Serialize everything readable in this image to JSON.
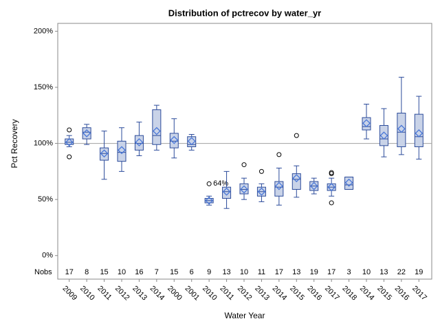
{
  "chart_data": {
    "type": "box",
    "title": "Distribution of pctrecov by water_yr",
    "x_label": "Water Year",
    "y_label": "Pct Recovery",
    "nobs_label": "Nobs",
    "categories": [
      "2009",
      "2010",
      "2011",
      "2012",
      "2013",
      "2014",
      "2000",
      "2001",
      "2010",
      "2011",
      "2012",
      "2013",
      "2014",
      "2015",
      "2016",
      "2017",
      "2018",
      "2014",
      "2015",
      "2016",
      "2017"
    ],
    "nobs": [
      17,
      8,
      15,
      10,
      16,
      7,
      15,
      6,
      9,
      13,
      10,
      11,
      17,
      13,
      19,
      17,
      3,
      10,
      13,
      22,
      19
    ],
    "min": [
      97,
      99,
      68,
      75,
      89,
      94,
      87,
      94,
      45,
      42,
      50,
      48,
      45,
      52,
      55,
      53,
      59,
      104,
      88,
      90,
      86
    ],
    "q1": [
      99,
      104,
      85,
      84,
      94,
      99,
      96,
      97,
      47,
      51,
      55,
      53,
      53,
      59,
      58,
      58,
      59,
      112,
      98,
      97,
      97
    ],
    "median": [
      101,
      110,
      91,
      92,
      100,
      107,
      102,
      99,
      49,
      57,
      59,
      57,
      61,
      68,
      62,
      61,
      63,
      115,
      104,
      110,
      106
    ],
    "q3": [
      104,
      114,
      96,
      102,
      107,
      130,
      109,
      106,
      51,
      61,
      64,
      61,
      66,
      73,
      66,
      64,
      70,
      123,
      116,
      127,
      126
    ],
    "max": [
      107,
      117,
      111,
      114,
      119,
      134,
      122,
      108,
      53,
      75,
      69,
      64,
      78,
      80,
      69,
      69,
      70,
      135,
      131,
      159,
      142
    ],
    "mean": [
      101,
      109,
      91,
      94,
      101,
      111,
      103,
      102,
      49,
      57,
      59,
      57,
      62,
      69,
      62,
      61,
      65,
      118,
      107,
      113,
      109
    ],
    "outliers": [
      [
        112,
        88
      ],
      [],
      [],
      [],
      [],
      [],
      [],
      [],
      [
        64
      ],
      [],
      [
        81
      ],
      [
        75
      ],
      [
        90
      ],
      [
        107
      ],
      [],
      [
        74,
        73,
        47
      ],
      [],
      [],
      [],
      [],
      []
    ],
    "outlier_labels": [
      null,
      null,
      null,
      null,
      null,
      null,
      null,
      null,
      [
        "64%"
      ],
      null,
      null,
      null,
      null,
      null,
      null,
      null,
      null,
      null,
      null,
      null,
      null
    ],
    "reference_line": 100,
    "box_fill": "#c9d3e8",
    "box_stroke": "#2a4a9a",
    "mean_color": "#4a78d8",
    "reference_color": "#a0a0a0",
    "ylim": [
      -21,
      207
    ],
    "yticks": [
      {
        "value": 0,
        "label": "0%"
      },
      {
        "value": 50,
        "label": "50%"
      },
      {
        "value": 100,
        "label": "100%"
      },
      {
        "value": 150,
        "label": "150%"
      },
      {
        "value": 200,
        "label": "200%"
      }
    ]
  }
}
